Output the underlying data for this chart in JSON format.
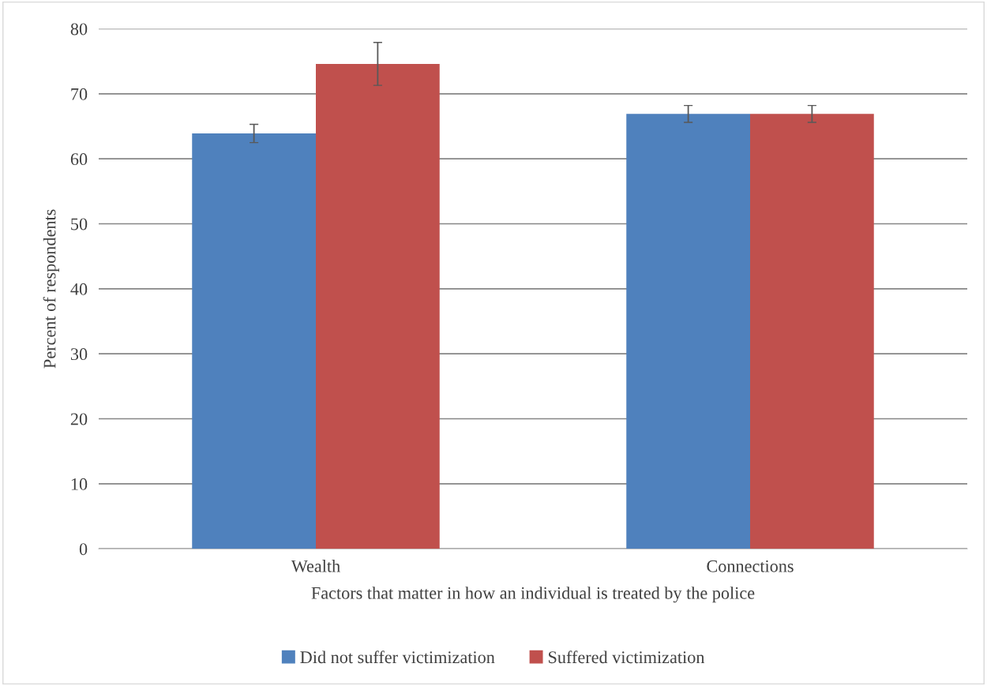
{
  "chart_data": {
    "type": "bar",
    "xlabel": "Factors that matter in how an individual is treated by the police",
    "ylabel": "Percent of respondents",
    "categories": [
      "Wealth",
      "Connections"
    ],
    "series": [
      {
        "name": "Did not suffer victimization",
        "color": "#4f81bd",
        "values": [
          63.9,
          66.9
        ],
        "errors": [
          1.4,
          1.3
        ]
      },
      {
        "name": "Suffered victimization",
        "color": "#c0504d",
        "values": [
          74.6,
          66.9
        ],
        "errors": [
          3.3,
          1.3
        ]
      }
    ],
    "ylim": [
      0,
      80
    ],
    "yticks": [
      0,
      10,
      20,
      30,
      40,
      50,
      60,
      70,
      80
    ],
    "grid": "y",
    "legend": "bottom"
  }
}
